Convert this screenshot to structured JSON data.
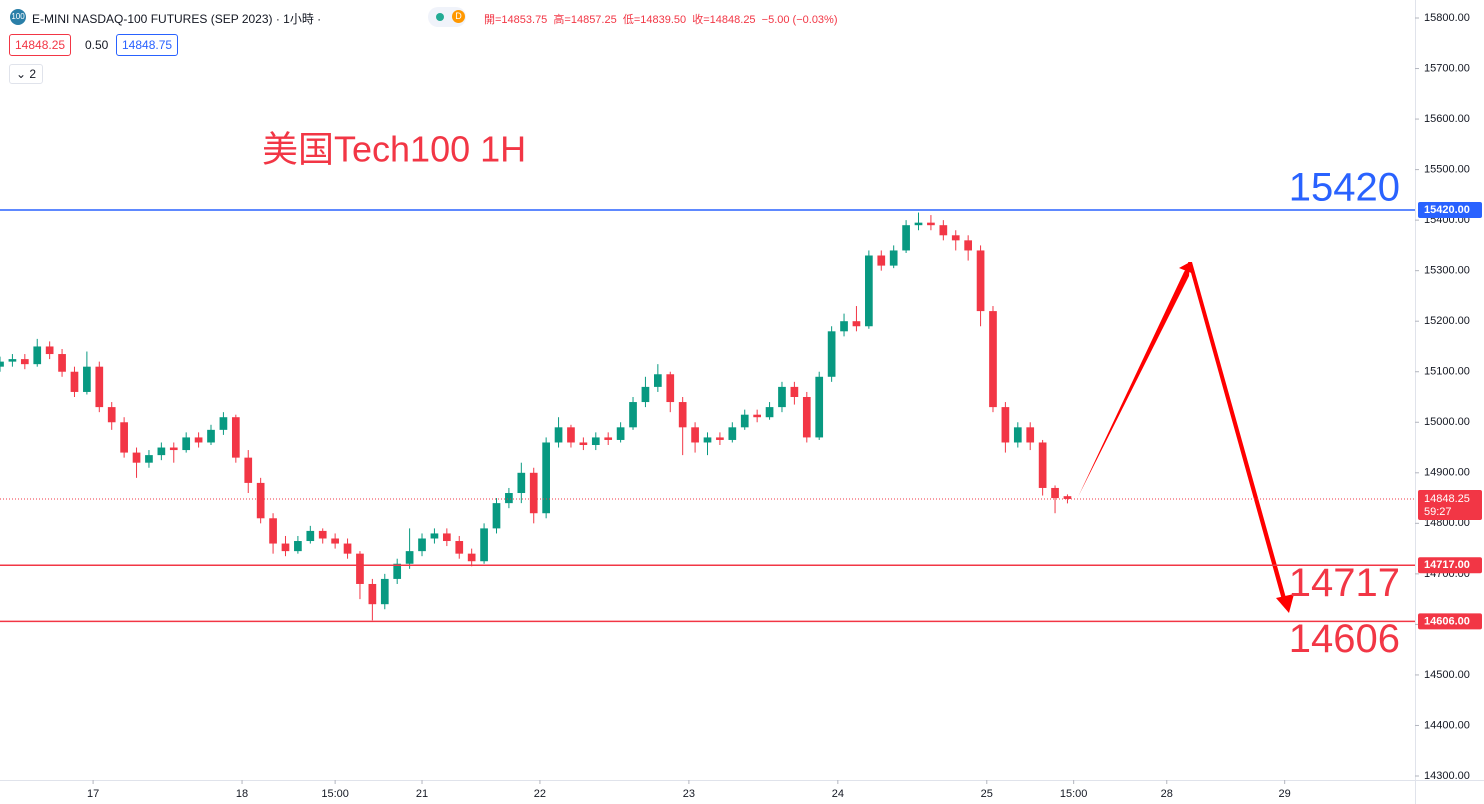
{
  "header": {
    "symbol": "E-MINI NASDAQ-100 FUTURES (SEP 2023) · 1小時 ·",
    "icon": "100",
    "badge": "D",
    "ohlc": "開=14853.75  高=14857.25  低=14839.50  收=14848.25  −5.00 (−0.03%)",
    "bid": "14848.25",
    "spread": "0.50",
    "ask": "14848.75",
    "indicators": "2",
    "countdown": "59:27"
  },
  "chart_data": {
    "type": "candlestick",
    "title": "美国Tech100 1H",
    "up_color": "#089981",
    "down_color": "#f23645",
    "grid": false,
    "xlim": [
      0,
      228
    ],
    "xticks": [
      {
        "value": 15,
        "label": "17"
      },
      {
        "value": 39,
        "label": "18"
      },
      {
        "value": 54,
        "label": "15:00"
      },
      {
        "value": 68,
        "label": "21"
      },
      {
        "value": 87,
        "label": "22"
      },
      {
        "value": 111,
        "label": "23"
      },
      {
        "value": 135,
        "label": "24"
      },
      {
        "value": 159,
        "label": "25"
      },
      {
        "value": 173,
        "label": "15:00"
      },
      {
        "value": 188,
        "label": "28"
      },
      {
        "value": 207,
        "label": "29"
      }
    ],
    "ylim": [
      14300,
      15800
    ],
    "yticks": [
      {
        "value": 14300,
        "label": "14300.00"
      },
      {
        "value": 14400,
        "label": "14400.00"
      },
      {
        "value": 14500,
        "label": "14500.00"
      },
      {
        "value": 14600,
        "label": "14600.00"
      },
      {
        "value": 14700,
        "label": "14700.00"
      },
      {
        "value": 14800,
        "label": "14800.00"
      },
      {
        "value": 14900,
        "label": "14900.00"
      },
      {
        "value": 15000,
        "label": "15000.00"
      },
      {
        "value": 15100,
        "label": "15100.00"
      },
      {
        "value": 15200,
        "label": "15200.00"
      },
      {
        "value": 15300,
        "label": "15300.00"
      },
      {
        "value": 15400,
        "label": "15400.00"
      },
      {
        "value": 15500,
        "label": "15500.00"
      },
      {
        "value": 15600,
        "label": "15600.00"
      },
      {
        "value": 15700,
        "label": "15700.00"
      },
      {
        "value": 15800,
        "label": "15800.00"
      }
    ],
    "levels": [
      {
        "value": 15420,
        "label": "15420",
        "axis_label": "15420.00",
        "color": "#2962ff"
      },
      {
        "value": 14717,
        "label": "14717",
        "axis_label": "14717.00",
        "color": "#f23645"
      },
      {
        "value": 14606,
        "label": "14606",
        "axis_label": "14606.00",
        "color": "#f23645"
      }
    ],
    "x": [
      0,
      2,
      4,
      6,
      8,
      10,
      12,
      14,
      16,
      18,
      20,
      22,
      24,
      26,
      28,
      30,
      32,
      34,
      36,
      38,
      40,
      42,
      44,
      46,
      48,
      50,
      52,
      54,
      56,
      58,
      60,
      62,
      64,
      66,
      68,
      70,
      72,
      74,
      76,
      78,
      80,
      82,
      84,
      86,
      88,
      90,
      92,
      94,
      96,
      98,
      100,
      102,
      104,
      106,
      108,
      110,
      112,
      114,
      116,
      118,
      120,
      122,
      124,
      126,
      128,
      130,
      132,
      134,
      136,
      138,
      140,
      142,
      144,
      146,
      148,
      150,
      152,
      154,
      156,
      158,
      160,
      162,
      164,
      166,
      168,
      170,
      172
    ],
    "open": [
      15110,
      15120,
      15125,
      15115,
      15150,
      15135,
      15100,
      15060,
      15110,
      15030,
      15000,
      14940,
      14920,
      14935,
      14950,
      14945,
      14970,
      14960,
      14985,
      15010,
      14930,
      14880,
      14810,
      14760,
      14745,
      14765,
      14785,
      14770,
      14760,
      14740,
      14680,
      14640,
      14690,
      14720,
      14745,
      14770,
      14780,
      14765,
      14740,
      14725,
      14790,
      14840,
      14860,
      14900,
      14820,
      14960,
      14990,
      14960,
      14955,
      14970,
      14965,
      14990,
      15040,
      15070,
      15095,
      15040,
      14990,
      14960,
      14970,
      14965,
      14990,
      15015,
      15010,
      15030,
      15070,
      15050,
      14970,
      15090,
      15180,
      15200,
      15190,
      15330,
      15310,
      15340,
      15390,
      15395,
      15390,
      15370,
      15360,
      15340,
      15220,
      15030,
      14960,
      14990,
      14960,
      14870,
      14853.75
    ],
    "high": [
      15130,
      15135,
      15135,
      15165,
      15160,
      15145,
      15110,
      15140,
      15120,
      15040,
      15010,
      14950,
      14945,
      14960,
      14960,
      14980,
      14980,
      14995,
      15020,
      15015,
      14945,
      14890,
      14820,
      14775,
      14775,
      14795,
      14790,
      14780,
      14770,
      14745,
      14690,
      14700,
      14730,
      14790,
      14780,
      14790,
      14790,
      14775,
      14750,
      14800,
      14850,
      14870,
      14920,
      14910,
      14970,
      15010,
      14995,
      14970,
      14980,
      14980,
      15000,
      15050,
      15090,
      15115,
      15100,
      15050,
      15000,
      14980,
      14980,
      15000,
      15025,
      15025,
      15040,
      15080,
      15080,
      15060,
      15100,
      15190,
      15215,
      15230,
      15340,
      15340,
      15350,
      15400,
      15415,
      15410,
      15400,
      15380,
      15370,
      15350,
      15230,
      15040,
      15000,
      15000,
      14965,
      14875,
      14857.25
    ],
    "low": [
      15100,
      15110,
      15105,
      15110,
      15125,
      15090,
      15050,
      15055,
      15020,
      14985,
      14930,
      14890,
      14910,
      14925,
      14920,
      14940,
      14950,
      14955,
      14975,
      14920,
      14860,
      14800,
      14740,
      14735,
      14740,
      14760,
      14760,
      14750,
      14730,
      14650,
      14608,
      14630,
      14680,
      14710,
      14735,
      14760,
      14755,
      14730,
      14715,
      14720,
      14780,
      14830,
      14840,
      14800,
      14810,
      14950,
      14950,
      14945,
      14945,
      14955,
      14960,
      14985,
      15030,
      15060,
      15020,
      14935,
      14940,
      14935,
      14955,
      14960,
      14985,
      15000,
      15005,
      15020,
      15035,
      14960,
      14965,
      15080,
      15170,
      15180,
      15185,
      15300,
      15305,
      15335,
      15380,
      15380,
      15360,
      15340,
      15320,
      15190,
      15020,
      14940,
      14950,
      14945,
      14855,
      14820,
      14839.5
    ],
    "close": [
      15120,
      15125,
      15115,
      15150,
      15135,
      15100,
      15060,
      15110,
      15030,
      15000,
      14940,
      14920,
      14935,
      14950,
      14945,
      14970,
      14960,
      14985,
      15010,
      14930,
      14880,
      14810,
      14760,
      14745,
      14765,
      14785,
      14770,
      14760,
      14740,
      14680,
      14640,
      14690,
      14720,
      14745,
      14770,
      14780,
      14765,
      14740,
      14725,
      14790,
      14840,
      14860,
      14900,
      14820,
      14960,
      14990,
      14960,
      14955,
      14970,
      14965,
      14990,
      15040,
      15070,
      15095,
      15040,
      14990,
      14960,
      14970,
      14965,
      14990,
      15015,
      15010,
      15030,
      15070,
      15050,
      14970,
      15090,
      15180,
      15200,
      15190,
      15330,
      15310,
      15340,
      15390,
      15395,
      15390,
      15370,
      15360,
      15340,
      15220,
      15030,
      14960,
      14990,
      14960,
      14870,
      14850,
      14848.25
    ]
  }
}
